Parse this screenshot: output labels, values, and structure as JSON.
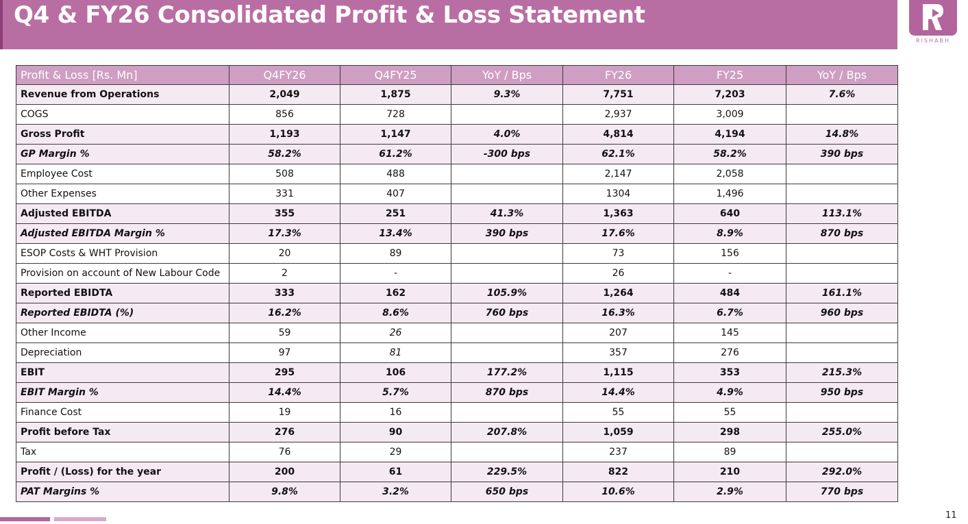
{
  "title": "Q4 & FY26 Consolidated Profit & Loss Statement",
  "logo": {
    "text": "RISHABH",
    "color": "#b3649c"
  },
  "page_number": "11",
  "colors": {
    "title_bg": "#b96ea3",
    "header_bg": "#cf9ec3",
    "row_highlight": "#f6eaf2"
  },
  "table": {
    "headers": [
      "Profit & Loss [Rs. Mn]",
      "Q4FY26",
      "Q4FY25",
      "YoY / Bps",
      "FY26",
      "FY25",
      "YoY / Bps"
    ],
    "rows": [
      {
        "style": "bold",
        "cells": [
          "Revenue from Operations",
          "2,049",
          "1,875",
          "9.3%",
          "7,751",
          "7,203",
          "7.6%"
        ]
      },
      {
        "style": "plain",
        "cells": [
          "COGS",
          "856",
          "728",
          "",
          "2,937",
          "3,009",
          ""
        ]
      },
      {
        "style": "bold",
        "cells": [
          "Gross Profit",
          "1,193",
          "1,147",
          "4.0%",
          "4,814",
          "4,194",
          "14.8%"
        ]
      },
      {
        "style": "italic",
        "cells": [
          "GP Margin %",
          "58.2%",
          "61.2%",
          "-300 bps",
          "62.1%",
          "58.2%",
          "390 bps"
        ]
      },
      {
        "style": "plain",
        "cells": [
          "Employee Cost",
          "508",
          "488",
          "",
          "2,147",
          "2,058",
          ""
        ]
      },
      {
        "style": "plain",
        "cells": [
          "Other Expenses",
          "331",
          "407",
          "",
          "1304",
          "1,496",
          ""
        ]
      },
      {
        "style": "bold",
        "cells": [
          "Adjusted EBITDA",
          "355",
          "251",
          "41.3%",
          "1,363",
          "640",
          "113.1%"
        ]
      },
      {
        "style": "italic",
        "cells": [
          "Adjusted EBITDA Margin %",
          "17.3%",
          "13.4%",
          "390 bps",
          "17.6%",
          "8.9%",
          "870 bps"
        ]
      },
      {
        "style": "plain",
        "cells": [
          "ESOP Costs & WHT Provision",
          "20",
          "89",
          "",
          "73",
          "156",
          ""
        ]
      },
      {
        "style": "plain",
        "cells": [
          "Provision on account of New Labour Code",
          "2",
          "-",
          "",
          "26",
          "-",
          ""
        ]
      },
      {
        "style": "bold",
        "cells": [
          "Reported EBIDTA",
          "333",
          "162",
          "105.9%",
          "1,264",
          "484",
          "161.1%"
        ]
      },
      {
        "style": "italic",
        "cells": [
          "Reported EBIDTA (%)",
          "16.2%",
          "8.6%",
          "760 bps",
          "16.3%",
          "6.7%",
          "960 bps"
        ]
      },
      {
        "style": "plain",
        "italic_cols": [
          2
        ],
        "cells": [
          "Other Income",
          "59",
          "26",
          "",
          "207",
          "145",
          ""
        ]
      },
      {
        "style": "plain",
        "italic_cols": [
          2
        ],
        "cells": [
          "Depreciation",
          "97",
          "81",
          "",
          "357",
          "276",
          ""
        ]
      },
      {
        "style": "bold",
        "cells": [
          "EBIT",
          "295",
          "106",
          "177.2%",
          "1,115",
          "353",
          "215.3%"
        ]
      },
      {
        "style": "italic",
        "cells": [
          "EBIT Margin %",
          "14.4%",
          "5.7%",
          "870 bps",
          "14.4%",
          "4.9%",
          "950 bps"
        ]
      },
      {
        "style": "plain",
        "cells": [
          "Finance Cost",
          "19",
          "16",
          "",
          "55",
          "55",
          ""
        ]
      },
      {
        "style": "bold",
        "cells": [
          "Profit before Tax",
          "276",
          "90",
          "207.8%",
          "1,059",
          "298",
          "255.0%"
        ]
      },
      {
        "style": "plain",
        "cells": [
          "Tax",
          "76",
          "29",
          "",
          "237",
          "89",
          ""
        ]
      },
      {
        "style": "bold",
        "cells": [
          "Profit / (Loss) for the year",
          "200",
          "61",
          "229.5%",
          "822",
          "210",
          "292.0%"
        ]
      },
      {
        "style": "italic",
        "cells": [
          "PAT Margins %",
          "9.8%",
          "3.2%",
          "650 bps",
          "10.6%",
          "2.9%",
          "770 bps"
        ]
      }
    ]
  }
}
